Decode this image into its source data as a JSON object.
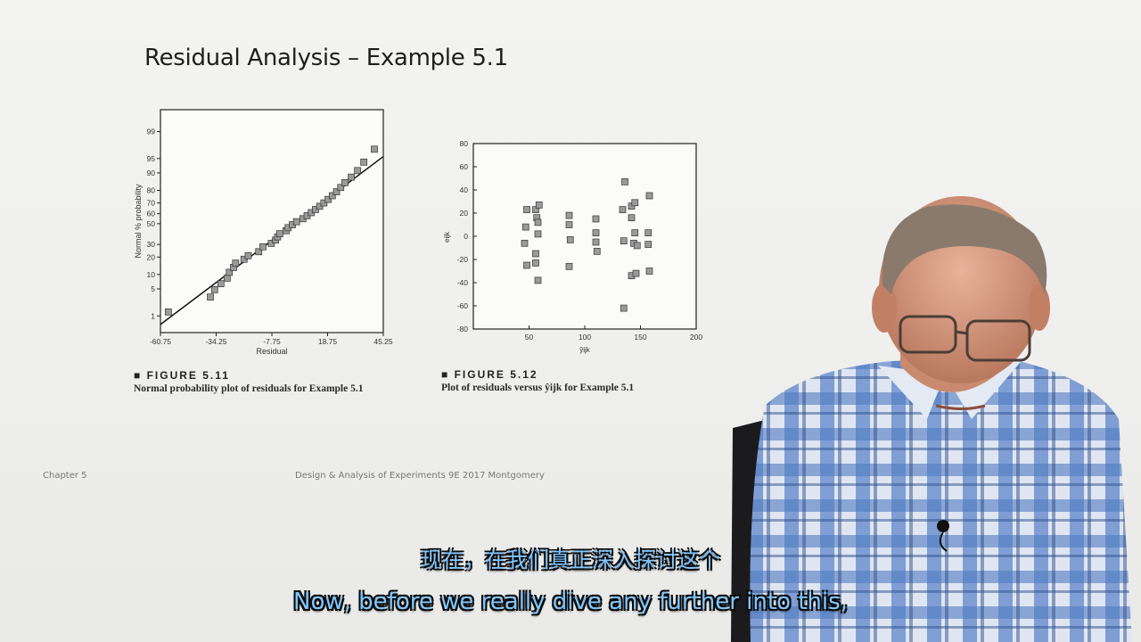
{
  "slide": {
    "title": "Residual Analysis – Example 5.1",
    "footer_left": "Chapter 5",
    "footer_center": "Design & Analysis of Experiments 9E 2017 Montgomery"
  },
  "figure_left": {
    "number": "■ FIGURE 5.11",
    "caption": "Normal probability plot of residuals for Example 5.1"
  },
  "figure_right": {
    "number": "■ FIGURE 5.12",
    "caption": "Plot of residuals versus ŷijk for Example 5.1"
  },
  "subtitles": {
    "chinese": "现在，在我们真正深入探讨这个",
    "english": "Now, before we really dive any further into this,"
  },
  "colors": {
    "marker_fill": "#9a9a9a",
    "marker_edge": "#333333",
    "subtitle": "#7fc6ff"
  },
  "chart_data": [
    {
      "type": "scatter",
      "title": "",
      "xlabel": "Residual",
      "ylabel": "Normal % probability",
      "xlim": [
        -60.75,
        45.25
      ],
      "x_ticks": [
        "-60.75",
        "-34.25",
        "-7.75",
        "18.75",
        "45.25"
      ],
      "y_ticks": [
        "1",
        "5",
        "10",
        "20",
        "30",
        "50",
        "60",
        "70",
        "80",
        "90",
        "95",
        "99"
      ],
      "y_scale": "normal-probability",
      "reference_line": "fitted straight line",
      "points": [
        [
          -57,
          1.3
        ],
        [
          -37,
          3.2
        ],
        [
          -35,
          4.8
        ],
        [
          -32,
          6.5
        ],
        [
          -29,
          8.5
        ],
        [
          -28,
          11
        ],
        [
          -26,
          13.5
        ],
        [
          -25,
          16
        ],
        [
          -21,
          18.5
        ],
        [
          -19,
          21
        ],
        [
          -14,
          24
        ],
        [
          -12,
          28
        ],
        [
          -8,
          31
        ],
        [
          -6,
          34
        ],
        [
          -5,
          37
        ],
        [
          -4,
          40
        ],
        [
          -1,
          43
        ],
        [
          0,
          46
        ],
        [
          2,
          49
        ],
        [
          4,
          52
        ],
        [
          7,
          55
        ],
        [
          9,
          58
        ],
        [
          11,
          61
        ],
        [
          13,
          64
        ],
        [
          15,
          67
        ],
        [
          17,
          70
        ],
        [
          19,
          73
        ],
        [
          21,
          76
        ],
        [
          23,
          79
        ],
        [
          25,
          82
        ],
        [
          27,
          85
        ],
        [
          30,
          88
        ],
        [
          33,
          91
        ],
        [
          36,
          94
        ],
        [
          41,
          97
        ]
      ]
    },
    {
      "type": "scatter",
      "title": "",
      "xlabel": "ŷijk",
      "ylabel": "eijk",
      "xlim": [
        0,
        200
      ],
      "ylim": [
        -80,
        80
      ],
      "x_ticks": [
        50,
        100,
        150,
        200
      ],
      "y_ticks": [
        -80,
        -60,
        -40,
        -20,
        0,
        20,
        40,
        60,
        80
      ],
      "points": [
        [
          48,
          23
        ],
        [
          47,
          8
        ],
        [
          46,
          -6
        ],
        [
          48,
          -25
        ],
        [
          56,
          23
        ],
        [
          57,
          16
        ],
        [
          58,
          12
        ],
        [
          59,
          27
        ],
        [
          58,
          2
        ],
        [
          56,
          -15
        ],
        [
          56,
          -23
        ],
        [
          58,
          -38
        ],
        [
          86,
          18
        ],
        [
          86,
          10
        ],
        [
          87,
          -3
        ],
        [
          86,
          -26
        ],
        [
          110,
          15
        ],
        [
          110,
          3
        ],
        [
          110,
          -5
        ],
        [
          111,
          -13
        ],
        [
          136,
          47
        ],
        [
          134,
          23
        ],
        [
          135,
          -4
        ],
        [
          135,
          -62
        ],
        [
          142,
          26
        ],
        [
          142,
          16
        ],
        [
          145,
          29
        ],
        [
          145,
          3
        ],
        [
          144,
          -6
        ],
        [
          147,
          -8
        ],
        [
          142,
          -34
        ],
        [
          146,
          -32
        ],
        [
          158,
          35
        ],
        [
          157,
          3
        ],
        [
          157,
          -7
        ],
        [
          158,
          -30
        ]
      ]
    }
  ]
}
